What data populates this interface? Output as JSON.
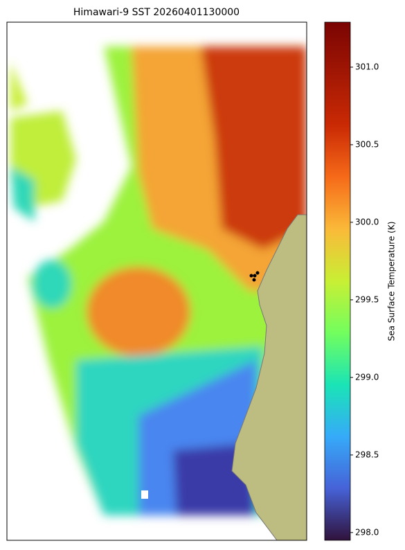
{
  "map": {
    "title": "Himawari-9 SST 20260401130000",
    "colorbar": {
      "label": "Sea Surface Temperature (K)",
      "lim": [
        297.95,
        301.29
      ],
      "ticks": [
        {
          "value": 298,
          "label": "298.0"
        },
        {
          "value": 298.5,
          "label": "298.5"
        },
        {
          "value": 299,
          "label": "299.0"
        },
        {
          "value": 299.5,
          "label": "299.5"
        },
        {
          "value": 300,
          "label": "300.0"
        },
        {
          "value": 300.5,
          "label": "300.5"
        },
        {
          "value": 301,
          "label": "301.0"
        }
      ]
    }
  }
}
